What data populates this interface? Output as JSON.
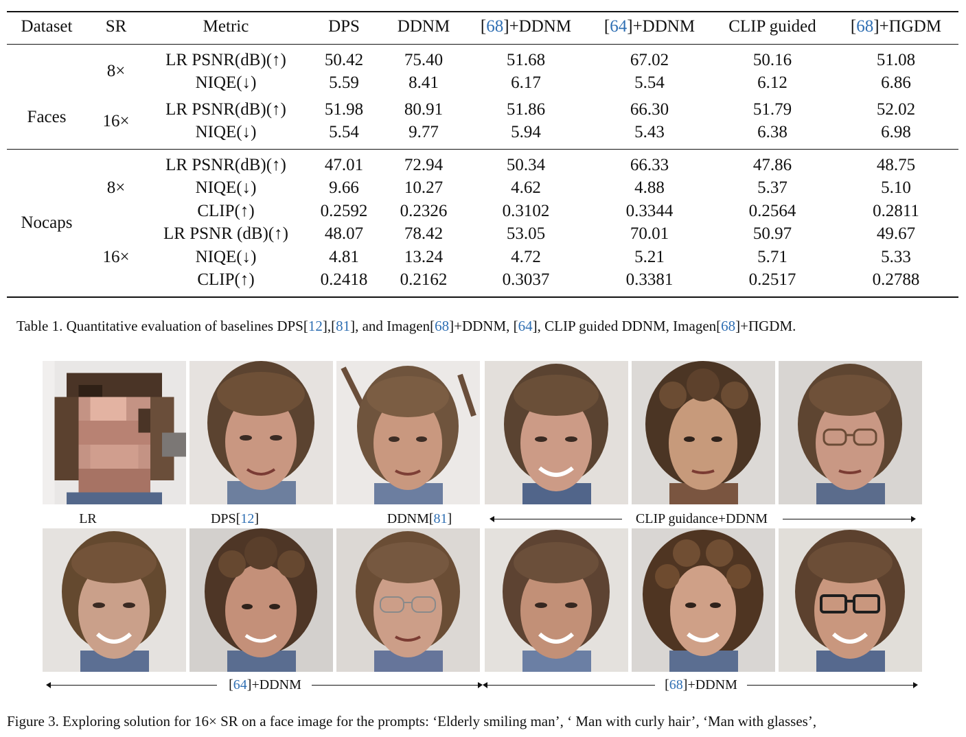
{
  "table": {
    "headers": [
      "Dataset",
      "SR",
      "Metric",
      "DPS",
      "DDNM",
      "[68]+DDNM",
      "[64]+DDNM",
      "CLIP guided",
      "[68]+ΠGDM"
    ],
    "header_parts": {
      "h68ddnm": {
        "ref": "68",
        "rest": "]+DDNM"
      },
      "h64ddnm": {
        "ref": "64",
        "rest": "]+DDNM"
      },
      "h68pigdm": {
        "ref": "68",
        "rest": "]+ΠGDM"
      }
    },
    "groups": [
      {
        "dataset": "Faces",
        "sr": [
          "8×",
          "16×"
        ]
      },
      {
        "dataset": "Nocaps",
        "sr": [
          "8×",
          "16×"
        ]
      }
    ],
    "rows": [
      {
        "metric": "LR PSNR(dB)(↑)",
        "values": [
          "50.42",
          "75.40",
          "51.68",
          "67.02",
          "50.16",
          "51.08"
        ]
      },
      {
        "metric": "NIQE(↓)",
        "values": [
          "5.59",
          "8.41",
          "6.17",
          "5.54",
          "6.12",
          "6.86"
        ]
      },
      {
        "metric": "LR PSNR(dB)(↑)",
        "values": [
          "51.98",
          "80.91",
          "51.86",
          "66.30",
          "51.79",
          "52.02"
        ]
      },
      {
        "metric": "NIQE(↓)",
        "values": [
          "5.54",
          "9.77",
          "5.94",
          "5.43",
          "6.38",
          "6.98"
        ]
      },
      {
        "metric": "LR PSNR(dB)(↑)",
        "values": [
          "47.01",
          "72.94",
          "50.34",
          "66.33",
          "47.86",
          "48.75"
        ]
      },
      {
        "metric": "NIQE(↓)",
        "values": [
          "9.66",
          "10.27",
          "4.62",
          "4.88",
          "5.37",
          "5.10"
        ]
      },
      {
        "metric": "CLIP(↑)",
        "values": [
          "0.2592",
          "0.2326",
          "0.3102",
          "0.3344",
          "0.2564",
          "0.2811"
        ]
      },
      {
        "metric": "LR PSNR (dB)(↑)",
        "values": [
          "48.07",
          "78.42",
          "53.05",
          "70.01",
          "50.97",
          "49.67"
        ]
      },
      {
        "metric": "NIQE(↓)",
        "values": [
          "4.81",
          "13.24",
          "4.72",
          "5.21",
          "5.71",
          "5.33"
        ]
      },
      {
        "metric": "CLIP(↑)",
        "values": [
          "0.2418",
          "0.2162",
          "0.3037",
          "0.3381",
          "0.2517",
          "0.2788"
        ]
      }
    ]
  },
  "table_caption": {
    "prefix": "Table 1. Quantitative evaluation of baselines DPS[",
    "r12": "12",
    "mid1": "],[",
    "r81": "81",
    "mid2": "], and Imagen[",
    "r68a": "68",
    "mid3": "]+DDNM, [",
    "r64": "64",
    "mid4": "], CLIP guided DDNM, Imagen[",
    "r68b": "68",
    "suffix": "]+ΠGDM."
  },
  "figure": {
    "label_lr": "LR",
    "label_dps": "DPS[",
    "label_dps_ref": "12",
    "label_ddnm": "DDNM[",
    "label_ddnm_ref": "81",
    "label_clip": "CLIP guidance+DDNM",
    "label_64": "[",
    "label_64_ref": "64",
    "label_64_rest": "]+DDNM",
    "label_68": "[",
    "label_68_ref": "68",
    "label_68_rest": "]+DDNM",
    "caption": "Figure 3. Exploring solution for 16× SR on a face image for the prompts: ‘Elderly smiling man’, ‘ Man with curly hair’, ‘Man with glasses’,"
  },
  "colors": {
    "reference_link": "#2f6fb3",
    "text": "#111111",
    "rule": "#111111"
  }
}
